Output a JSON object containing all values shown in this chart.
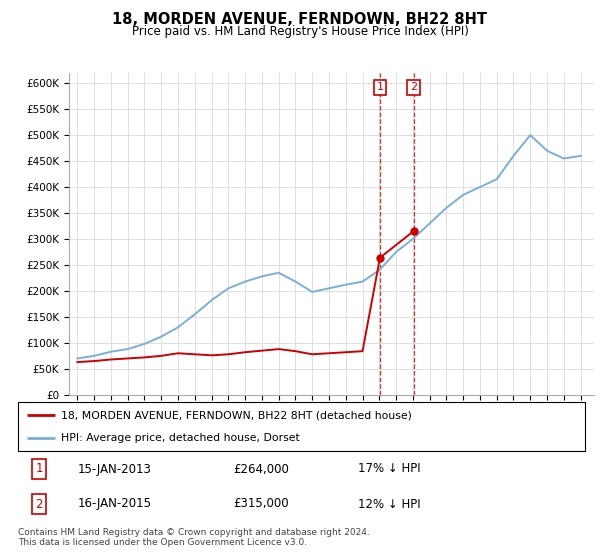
{
  "title": "18, MORDEN AVENUE, FERNDOWN, BH22 8HT",
  "subtitle": "Price paid vs. HM Land Registry's House Price Index (HPI)",
  "hpi_x": [
    1995,
    1996,
    1997,
    1998,
    1999,
    2000,
    2001,
    2002,
    2003,
    2004,
    2005,
    2006,
    2007,
    2008,
    2009,
    2010,
    2011,
    2012,
    2013,
    2014,
    2015,
    2016,
    2017,
    2018,
    2019,
    2020,
    2021,
    2022,
    2023,
    2024,
    2025
  ],
  "hpi_y": [
    70000,
    75000,
    83000,
    88000,
    98000,
    112000,
    130000,
    155000,
    182000,
    205000,
    218000,
    228000,
    235000,
    218000,
    198000,
    205000,
    212000,
    218000,
    240000,
    275000,
    300000,
    330000,
    360000,
    385000,
    400000,
    415000,
    460000,
    500000,
    470000,
    455000,
    460000
  ],
  "red_x": [
    1995,
    1996,
    1997,
    1998,
    1999,
    2000,
    2001,
    2002,
    2003,
    2004,
    2005,
    2006,
    2007,
    2008,
    2009,
    2010,
    2011,
    2012,
    2013.04,
    2015.04
  ],
  "red_y": [
    63000,
    65000,
    68000,
    70000,
    72000,
    75000,
    80000,
    78000,
    76000,
    78000,
    82000,
    85000,
    88000,
    84000,
    78000,
    80000,
    82000,
    84000,
    264000,
    315000
  ],
  "marker1_x": 2013.04,
  "marker1_y": 264000,
  "marker2_x": 2015.04,
  "marker2_y": 315000,
  "vline1_x": 2013.04,
  "vline2_x": 2015.04,
  "legend1_label": "18, MORDEN AVENUE, FERNDOWN, BH22 8HT (detached house)",
  "legend2_label": "HPI: Average price, detached house, Dorset",
  "entry1_num": "1",
  "entry1_date": "15-JAN-2013",
  "entry1_price": "£264,000",
  "entry1_hpi": "17% ↓ HPI",
  "entry2_num": "2",
  "entry2_date": "16-JAN-2015",
  "entry2_price": "£315,000",
  "entry2_hpi": "12% ↓ HPI",
  "footnote": "Contains HM Land Registry data © Crown copyright and database right 2024.\nThis data is licensed under the Open Government Licence v3.0.",
  "red_color": "#cc0000",
  "blue_color": "#7bafd4",
  "grid_color": "#dddddd",
  "yticks": [
    0,
    50000,
    100000,
    150000,
    200000,
    250000,
    300000,
    350000,
    400000,
    450000,
    500000,
    550000,
    600000
  ],
  "ymax": 620000,
  "xmin": 1994.5,
  "xmax": 2025.8
}
